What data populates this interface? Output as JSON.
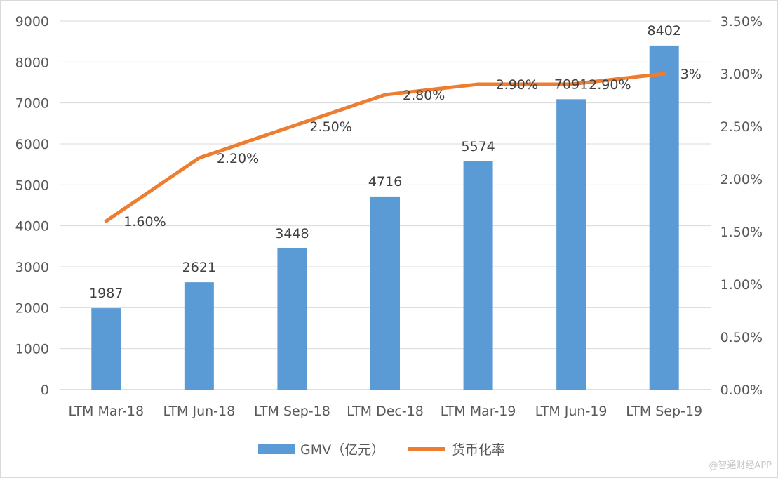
{
  "chart_data": {
    "type": "bar",
    "categories": [
      "LTM Mar-18",
      "LTM Jun-18",
      "LTM Sep-18",
      "LTM Dec-18",
      "LTM Mar-19",
      "LTM Jun-19",
      "LTM Sep-19"
    ],
    "series": [
      {
        "name": "GMV（亿元）",
        "type": "bar",
        "axis": "left",
        "values": [
          1987,
          2621,
          3448,
          4716,
          5574,
          7091,
          8402
        ],
        "value_labels": [
          "1987",
          "2621",
          "3448",
          "4716",
          "5574",
          "7091",
          "8402"
        ],
        "color": "#5b9bd5"
      },
      {
        "name": "货币化率",
        "type": "line",
        "axis": "right",
        "values": [
          1.6,
          2.2,
          2.5,
          2.8,
          2.9,
          2.9,
          3.0
        ],
        "value_labels": [
          "1.60%",
          "2.20%",
          "2.50%",
          "2.80%",
          "2.90%",
          "2.90%",
          "3%"
        ],
        "color": "#ed7d31"
      }
    ],
    "y_left": {
      "ylim": [
        0,
        9000
      ],
      "ticks": [
        "0",
        "1000",
        "2000",
        "3000",
        "4000",
        "5000",
        "6000",
        "7000",
        "8000",
        "9000"
      ]
    },
    "y_right": {
      "ylim": [
        0,
        3.5
      ],
      "ticks": [
        "0.00%",
        "0.50%",
        "1.00%",
        "1.50%",
        "2.00%",
        "2.50%",
        "3.00%",
        "3.50%"
      ]
    },
    "grid": true,
    "legend": "bottom"
  },
  "watermark": "@智通财经APP"
}
